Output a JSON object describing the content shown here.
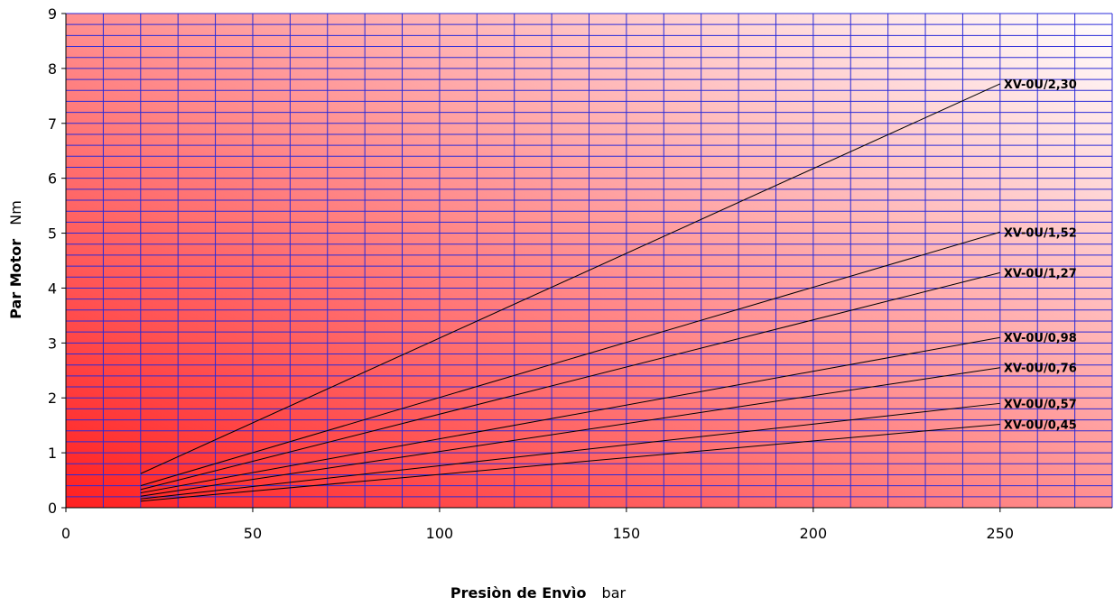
{
  "chart_data": {
    "type": "line",
    "title": "",
    "xlabel": {
      "bold": "Presiòn de Envìo",
      "unit": "bar"
    },
    "ylabel": {
      "bold": "Par Motor",
      "unit": "Nm"
    },
    "xlim": [
      0,
      280
    ],
    "ylim": [
      0,
      9
    ],
    "x_ticks": [
      0,
      50,
      100,
      150,
      200,
      250
    ],
    "y_ticks": [
      0,
      1,
      2,
      3,
      4,
      5,
      6,
      7,
      8,
      9
    ],
    "x_grid_step": 10,
    "y_grid_step": 0.2,
    "grid": true,
    "grid_color": "#2a2ad8",
    "background_gradient": [
      "#ff2020",
      "#ffffff"
    ],
    "line_color": "#000000",
    "series": [
      {
        "name": "XV-0U/2,30",
        "x": [
          20,
          250
        ],
        "y": [
          0.62,
          7.72
        ]
      },
      {
        "name": "XV-0U/1,52",
        "x": [
          20,
          250
        ],
        "y": [
          0.4,
          5.02
        ]
      },
      {
        "name": "XV-0U/1,27",
        "x": [
          20,
          250
        ],
        "y": [
          0.33,
          4.28
        ]
      },
      {
        "name": "XV-0U/0,98",
        "x": [
          20,
          250
        ],
        "y": [
          0.27,
          3.1
        ]
      },
      {
        "name": "XV-0U/0,76",
        "x": [
          20,
          250
        ],
        "y": [
          0.21,
          2.55
        ]
      },
      {
        "name": "XV-0U/0,57",
        "x": [
          20,
          250
        ],
        "y": [
          0.16,
          1.9
        ]
      },
      {
        "name": "XV-0U/0,45",
        "x": [
          20,
          250
        ],
        "y": [
          0.12,
          1.52
        ]
      }
    ]
  }
}
